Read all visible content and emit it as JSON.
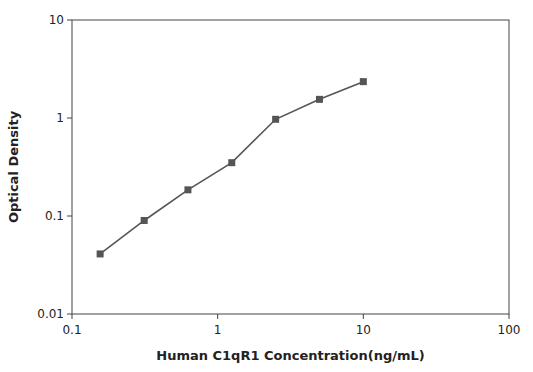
{
  "chart_data": {
    "type": "line",
    "x": [
      0.156,
      0.313,
      0.625,
      1.25,
      2.5,
      5.0,
      10.0
    ],
    "values": [
      0.041,
      0.09,
      0.185,
      0.35,
      0.97,
      1.55,
      2.35
    ],
    "xlabel": "Human C1qR1 Concentration(ng/mL)",
    "ylabel": "Optical Density",
    "color": "#555555",
    "marker": "square",
    "log": true,
    "xlim": [
      0.1,
      100
    ],
    "ylim": [
      0.01,
      10
    ],
    "xticks": [
      0.1,
      1,
      10,
      100
    ],
    "yticks": [
      0.01,
      0.1,
      1,
      10
    ],
    "grid": false
  }
}
